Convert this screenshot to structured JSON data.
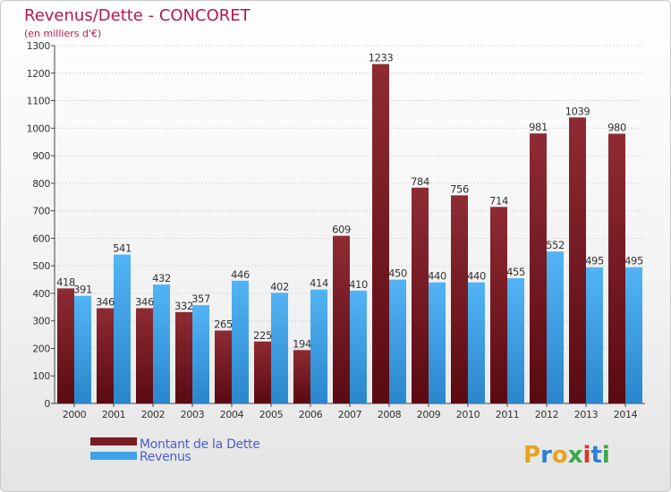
{
  "chart_data": {
    "type": "bar",
    "title": "Revenus/Dette - CONCORET",
    "subtitle": "(en milliers d'€)",
    "categories": [
      "2000",
      "2001",
      "2002",
      "2003",
      "2004",
      "2005",
      "2006",
      "2007",
      "2008",
      "2009",
      "2010",
      "2011",
      "2012",
      "2013",
      "2014"
    ],
    "series": [
      {
        "name": "Montant de la Dette",
        "color": "#7a1a22",
        "values": [
          418,
          346,
          346,
          332,
          265,
          225,
          194,
          609,
          1233,
          784,
          756,
          714,
          981,
          1039,
          980
        ]
      },
      {
        "name": "Revenus",
        "color": "#3fa2e8",
        "values": [
          391,
          541,
          432,
          357,
          446,
          402,
          414,
          410,
          450,
          440,
          440,
          455,
          552,
          495,
          495
        ]
      }
    ],
    "ylim": [
      0,
      1300
    ],
    "yticks": [
      0,
      100,
      200,
      300,
      400,
      500,
      600,
      700,
      800,
      900,
      1000,
      1100,
      1200,
      1300
    ],
    "grid": true,
    "legend_position": "bottom-left"
  },
  "logo": {
    "text": "Proxiti",
    "icon": "proxiti-logo"
  }
}
